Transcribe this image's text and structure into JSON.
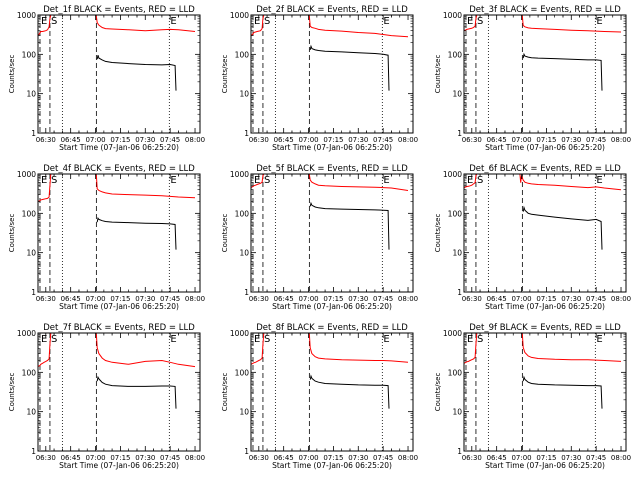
{
  "figure": {
    "background": "#ffffff",
    "axis_color": "#000000",
    "event_color": "#000000",
    "lld_color": "#ff0000"
  },
  "shared": {
    "ylabel": "Counts/sec",
    "xlabel": "Start Time (07-Jan-06 06:25:20)",
    "xticks": [
      "06:30",
      "06:45",
      "07:00",
      "07:15",
      "07:30",
      "07:45",
      "08:00"
    ],
    "xtick_minutes": [
      30,
      45,
      60,
      75,
      90,
      105,
      120
    ],
    "yticks": [
      "1",
      "10",
      "100",
      "1000"
    ],
    "ytick_values": [
      1,
      10,
      100,
      1000
    ],
    "xlim_minutes": [
      25.3,
      123
    ],
    "ylim": [
      1,
      1000
    ],
    "yscale": "log",
    "markers": [
      {
        "label": "E",
        "minute": 26.5,
        "style": "dashed"
      },
      {
        "label": "S",
        "minute": 32.5,
        "style": "dashed"
      },
      {
        "label": "",
        "minute": 40,
        "style": "dotted"
      },
      {
        "label": "",
        "minute": 60.5,
        "style": "dashed"
      },
      {
        "label": "E",
        "minute": 104.5,
        "style": "dotted"
      }
    ]
  },
  "chart_data": [
    {
      "type": "line",
      "title": "Det_1f BLACK = Events, RED = LLD",
      "series": [
        {
          "name": "LLD",
          "x": [
            25.3,
            26.5,
            27,
            28,
            29,
            30,
            31,
            32,
            32.5,
            33,
            34,
            60,
            60.5,
            61,
            62,
            64,
            66,
            70,
            80,
            90,
            100,
            105,
            110,
            120
          ],
          "y": [
            300,
            350,
            380,
            380,
            390,
            400,
            420,
            500,
            800,
            1000,
            1000,
            1000,
            900,
            640,
            550,
            480,
            450,
            440,
            420,
            400,
            420,
            430,
            420,
            380
          ]
        },
        {
          "name": "Events",
          "x": [
            61,
            61.5,
            62,
            64,
            66,
            70,
            80,
            90,
            100,
            105,
            108,
            108.5
          ],
          "y": [
            75,
            95,
            80,
            72,
            66,
            62,
            58,
            55,
            54,
            55,
            52,
            12
          ]
        }
      ]
    },
    {
      "type": "line",
      "title": "Det_2f BLACK = Events, RED = LLD",
      "series": [
        {
          "name": "LLD",
          "x": [
            25.3,
            26.5,
            27,
            28,
            29,
            30,
            31,
            32,
            32.5,
            33,
            34,
            60,
            60.5,
            61,
            62,
            64,
            66,
            70,
            80,
            90,
            100,
            105,
            110,
            120
          ],
          "y": [
            300,
            330,
            360,
            370,
            380,
            390,
            400,
            450,
            800,
            1000,
            1000,
            1000,
            900,
            520,
            480,
            460,
            430,
            410,
            390,
            360,
            340,
            320,
            300,
            280
          ]
        },
        {
          "name": "Events",
          "x": [
            61,
            61.5,
            62,
            64,
            66,
            70,
            80,
            90,
            100,
            105,
            108,
            108.5
          ],
          "y": [
            130,
            160,
            140,
            130,
            125,
            120,
            115,
            110,
            105,
            100,
            95,
            12
          ]
        }
      ]
    },
    {
      "type": "line",
      "title": "Det_3f BLACK = Events, RED = LLD",
      "series": [
        {
          "name": "LLD",
          "x": [
            25.3,
            26.5,
            27,
            28,
            29,
            30,
            31,
            32,
            32.5,
            33,
            34,
            60,
            60.5,
            61,
            62,
            64,
            66,
            70,
            80,
            90,
            100,
            105,
            110,
            120
          ],
          "y": [
            400,
            420,
            430,
            440,
            450,
            460,
            480,
            520,
            800,
            1000,
            1000,
            1000,
            900,
            540,
            500,
            470,
            460,
            450,
            430,
            410,
            400,
            390,
            380,
            370
          ]
        },
        {
          "name": "Events",
          "x": [
            61,
            61.5,
            62,
            64,
            66,
            70,
            80,
            90,
            100,
            105,
            108,
            108.5
          ],
          "y": [
            80,
            100,
            90,
            85,
            82,
            80,
            78,
            75,
            72,
            72,
            70,
            12
          ]
        }
      ]
    },
    {
      "type": "line",
      "title": "Det_4f BLACK = Events, RED = LLD",
      "series": [
        {
          "name": "LLD",
          "x": [
            25.3,
            26.5,
            27,
            28,
            29,
            30,
            31,
            32,
            32.5,
            33,
            34,
            60,
            60.5,
            61,
            62,
            64,
            66,
            70,
            80,
            90,
            100,
            105,
            110,
            120
          ],
          "y": [
            200,
            210,
            220,
            225,
            230,
            235,
            240,
            260,
            500,
            1000,
            1000,
            1000,
            900,
            420,
            380,
            350,
            330,
            310,
            300,
            290,
            280,
            270,
            260,
            250
          ]
        },
        {
          "name": "Events",
          "x": [
            61,
            61.5,
            62,
            64,
            66,
            70,
            80,
            90,
            100,
            105,
            108,
            108.5
          ],
          "y": [
            60,
            75,
            70,
            65,
            62,
            60,
            58,
            56,
            55,
            54,
            52,
            12
          ]
        }
      ]
    },
    {
      "type": "line",
      "title": "Det_5f BLACK = Events, RED = LLD",
      "series": [
        {
          "name": "LLD",
          "x": [
            25.3,
            26.5,
            27,
            28,
            29,
            30,
            31,
            32,
            32.5,
            33,
            34,
            60,
            60.5,
            61,
            62,
            64,
            66,
            70,
            80,
            90,
            100,
            105,
            110,
            120
          ],
          "y": [
            450,
            480,
            500,
            520,
            540,
            560,
            580,
            620,
            900,
            1000,
            1000,
            1000,
            950,
            700,
            620,
            560,
            520,
            500,
            480,
            470,
            460,
            450,
            440,
            380
          ]
        },
        {
          "name": "Events",
          "x": [
            61,
            61.5,
            62,
            64,
            66,
            70,
            80,
            90,
            100,
            105,
            108,
            108.5
          ],
          "y": [
            150,
            180,
            160,
            145,
            138,
            132,
            128,
            125,
            122,
            120,
            118,
            12
          ]
        }
      ]
    },
    {
      "type": "line",
      "title": "Det_6f BLACK = Events, RED = LLD",
      "series": [
        {
          "name": "LLD",
          "x": [
            25.3,
            26.5,
            27,
            28,
            29,
            30,
            31,
            32,
            32.5,
            33,
            34,
            59,
            59.5,
            60,
            61,
            62,
            64,
            66,
            70,
            80,
            90,
            100,
            105,
            110,
            120
          ],
          "y": [
            450,
            470,
            480,
            490,
            500,
            520,
            560,
            600,
            900,
            1000,
            1000,
            1000,
            600,
            900,
            700,
            620,
            580,
            560,
            540,
            520,
            480,
            450,
            470,
            440,
            400
          ]
        },
        {
          "name": "Events",
          "x": [
            61,
            61.5,
            62,
            64,
            66,
            70,
            80,
            90,
            100,
            105,
            108,
            108.5
          ],
          "y": [
            110,
            140,
            120,
            100,
            95,
            90,
            80,
            72,
            66,
            70,
            62,
            12
          ]
        }
      ]
    },
    {
      "type": "line",
      "title": "Det_7f BLACK = Events, RED = LLD",
      "series": [
        {
          "name": "LLD",
          "x": [
            25.3,
            26.5,
            27,
            28,
            29,
            30,
            31,
            32,
            32.5,
            33,
            34,
            60,
            60.5,
            61,
            62,
            64,
            66,
            70,
            80,
            90,
            100,
            105,
            110,
            120
          ],
          "y": [
            140,
            150,
            160,
            170,
            180,
            190,
            200,
            220,
            500,
            1000,
            1000,
            1000,
            900,
            420,
            300,
            230,
            200,
            180,
            160,
            190,
            200,
            180,
            160,
            140
          ]
        },
        {
          "name": "Events",
          "x": [
            61,
            61.5,
            62,
            64,
            66,
            70,
            80,
            90,
            100,
            105,
            108,
            108.5
          ],
          "y": [
            60,
            75,
            68,
            55,
            50,
            46,
            44,
            44,
            45,
            45,
            44,
            12
          ]
        }
      ]
    },
    {
      "type": "line",
      "title": "Det_8f BLACK = Events, RED = LLD",
      "series": [
        {
          "name": "LLD",
          "x": [
            25.3,
            26.5,
            27,
            28,
            29,
            30,
            31,
            32,
            32.5,
            33,
            34,
            60,
            60.5,
            61,
            62,
            64,
            66,
            70,
            80,
            90,
            100,
            105,
            110,
            120
          ],
          "y": [
            160,
            170,
            175,
            180,
            190,
            200,
            210,
            230,
            500,
            1000,
            1000,
            1000,
            900,
            420,
            300,
            250,
            230,
            220,
            210,
            205,
            200,
            200,
            195,
            180
          ]
        },
        {
          "name": "Events",
          "x": [
            61,
            61.5,
            62,
            64,
            66,
            70,
            80,
            90,
            100,
            105,
            108,
            108.5
          ],
          "y": [
            65,
            80,
            70,
            60,
            56,
            52,
            50,
            48,
            47,
            47,
            46,
            12
          ]
        }
      ]
    },
    {
      "type": "line",
      "title": "Det_9f BLACK = Events, RED = LLD",
      "series": [
        {
          "name": "LLD",
          "x": [
            25.3,
            26.5,
            27,
            28,
            29,
            30,
            31,
            32,
            32.5,
            33,
            34,
            60,
            60.5,
            61,
            62,
            64,
            66,
            70,
            80,
            90,
            100,
            105,
            110,
            120
          ],
          "y": [
            170,
            180,
            185,
            190,
            200,
            210,
            220,
            240,
            500,
            1000,
            1000,
            1000,
            900,
            430,
            320,
            260,
            240,
            225,
            215,
            210,
            210,
            205,
            200,
            190
          ]
        },
        {
          "name": "Events",
          "x": [
            61,
            61.5,
            62,
            64,
            66,
            70,
            80,
            90,
            100,
            105,
            108,
            108.5
          ],
          "y": [
            60,
            75,
            66,
            56,
            52,
            50,
            48,
            47,
            46,
            46,
            45,
            12
          ]
        }
      ]
    }
  ]
}
